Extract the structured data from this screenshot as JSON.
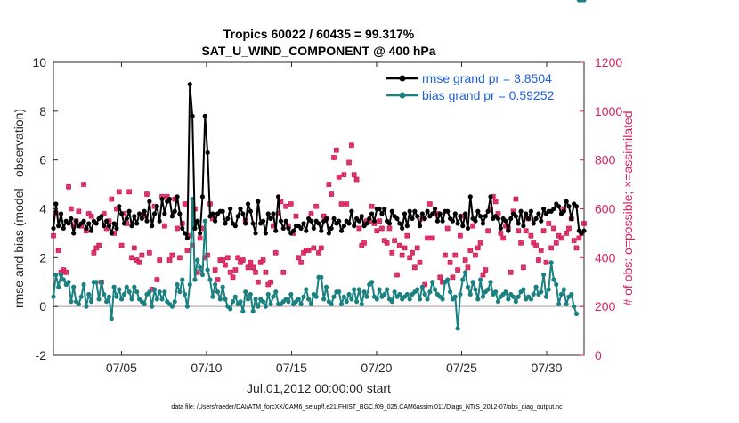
{
  "chart_data": {
    "type": "line",
    "title_line1": "Tropics 60022 / 60435 = 99.317%",
    "title_line2": "SAT_U_WIND_COMPONENT @ 400 hPa",
    "xlabel": "Jul.01,2012 00:00:00 start",
    "ylabel_left": "rmse and bias (model - observation)",
    "ylabel_right": "# of obs: o=possible; ×=assimilated",
    "footer": "data file: /Users/raeder/DAI/ATM_forcXX/CAM6_setup/f.e21.FHIST_BGC.f09_025.CAM6assim.011/Diags_NTrS_2012-07/obs_diag_output.nc",
    "xlim": [
      1,
      32.2
    ],
    "ylim_left": [
      -2,
      10
    ],
    "ylim_right": [
      0,
      1200
    ],
    "x_ticks": [
      5,
      10,
      15,
      20,
      25,
      30
    ],
    "x_tick_labels": [
      "07/05",
      "07/10",
      "07/15",
      "07/20",
      "07/25",
      "07/30"
    ],
    "y_left_ticks": [
      "-2",
      "0",
      "2",
      "4",
      "6",
      "8",
      "10"
    ],
    "y_right_ticks": [
      "0",
      "200",
      "400",
      "600",
      "800",
      "1000",
      "1200"
    ],
    "legend": [
      {
        "label": "rmse grand pr = 3.8504",
        "color": "#000000"
      },
      {
        "label": "bias grand pr = 0.59252",
        "color": "#1a8080"
      }
    ],
    "colors": {
      "rmse": "#000000",
      "bias": "#1a8080",
      "obs": "#d6235c",
      "zero_line": "#c9b8be",
      "legend_text": "#1f5fd6"
    },
    "series": [
      {
        "name": "rmse",
        "axis": "left",
        "values": [
          3.2,
          4.2,
          3.3,
          3.8,
          3.2,
          3.5,
          3.4,
          3.6,
          3.0,
          3.5,
          3.3,
          3.4,
          3.5,
          3.2,
          3.4,
          3.1,
          3.5,
          3.4,
          3.6,
          3.7,
          3.3,
          3.5,
          3.3,
          3.0,
          3.4,
          3.2,
          4.1,
          3.8,
          3.4,
          3.6,
          3.9,
          3.3,
          3.7,
          3.4,
          3.8,
          3.6,
          3.9,
          3.5,
          4.3,
          3.3,
          3.8,
          4.1,
          3.5,
          4.4,
          3.8,
          4.3,
          4.4,
          3.7,
          3.9,
          4.5,
          3.8,
          3.2,
          3.0,
          2.8,
          9.1,
          7.8,
          3.2,
          3.5,
          3.0,
          4.5,
          7.8,
          6.3,
          3.7,
          3.8,
          3.5,
          3.8,
          3.9,
          3.9,
          3.4,
          3.6,
          4.0,
          3.4,
          3.3,
          3.7,
          4.0,
          3.8,
          3.4,
          4.2,
          3.9,
          3.4,
          3.0,
          4.3,
          3.4,
          3.5,
          3.0,
          3.8,
          3.6,
          3.8,
          3.1,
          4.5,
          3.5,
          3.2,
          3.5,
          3.2,
          3.0,
          3.1,
          3.3,
          3.3,
          3.2,
          3.4,
          3.1,
          3.6,
          3.5,
          3.2,
          3.5,
          3.4,
          3.1,
          3.5,
          3.6,
          3.0,
          3.2,
          3.6,
          3.4,
          3.5,
          3.1,
          3.3,
          3.5,
          3.4,
          3.9,
          3.3,
          3.6,
          3.5,
          3.7,
          3.3,
          3.4,
          3.6,
          3.8,
          3.5,
          4.0,
          4.0,
          3.8,
          4.0,
          3.5,
          3.4,
          3.9,
          3.7,
          3.6,
          3.4,
          3.2,
          3.8,
          3.3,
          3.9,
          3.6,
          3.9,
          3.7,
          3.3,
          3.8,
          3.6,
          3.9,
          3.7,
          3.8,
          4.0,
          3.5,
          3.8,
          3.5,
          3.9,
          3.9,
          3.6,
          3.5,
          3.8,
          3.4,
          3.7,
          3.3,
          3.8,
          3.2,
          4.5,
          3.6,
          3.5,
          3.9,
          3.7,
          3.4,
          3.7,
          3.9,
          4.5,
          3.6,
          3.7,
          3.6,
          3.2,
          3.6,
          3.5,
          3.1,
          3.6,
          3.8,
          3.7,
          3.4,
          3.9,
          3.3,
          3.8,
          3.6,
          3.9,
          3.4,
          3.6,
          3.8,
          3.5,
          4.0,
          3.8,
          3.9,
          3.9,
          4.0,
          4.2,
          4.1,
          3.8,
          3.9,
          4.3,
          4.1,
          3.6,
          4.2,
          4.1,
          3.1,
          3.0,
          3.1
        ]
      },
      {
        "name": "bias",
        "axis": "left",
        "values": [
          0.4,
          1.3,
          0.8,
          1.3,
          1.1,
          0.9,
          1.0,
          0.2,
          0.8,
          0.2,
          0.1,
          0.4,
          0.9,
          0.0,
          0.5,
          0.2,
          1.0,
          1.0,
          0.3,
          1.0,
          0.5,
          0.2,
          0.4,
          -0.5,
          0.8,
          0.4,
          0.7,
          0.3,
          0.5,
          0.8,
          0.6,
          0.3,
          0.8,
          0.6,
          0.3,
          0.2,
          0.1,
          0.5,
          0.6,
          0.0,
          0.7,
          0.3,
          0.6,
          0.3,
          0.6,
          0.2,
          0.1,
          0.0,
          0.2,
          0.9,
          0.6,
          1.1,
          0.5,
          0.0,
          0.9,
          4.4,
          1.1,
          1.9,
          1.6,
          1.3,
          3.5,
          1.5,
          1.1,
          0.4,
          0.9,
          0.6,
          0.3,
          0.8,
          0.3,
          0.0,
          -0.1,
          0.2,
          0.4,
          0.1,
          0.2,
          -0.2,
          0.6,
          0.3,
          0.5,
          -0.2,
          0.3,
          0.0,
          0.3,
          0.2,
          0.0,
          0.5,
          0.1,
          0.4,
          0.6,
          0.1,
          0.1,
          0.2,
          0.3,
          0.2,
          0.5,
          0.1,
          0.2,
          0.3,
          0.1,
          0.4,
          0.7,
          0.3,
          0.1,
          0.5,
          0.4,
          1.2,
          1.2,
          0.3,
          0.8,
          0.2,
          0.1,
          0.4,
          0.6,
          0.6,
          0.1,
          0.4,
          0.2,
          0.5,
          0.3,
          0.7,
          0.2,
          0.7,
          0.1,
          0.6,
          0.4,
          0.9,
          1.0,
          0.4,
          0.3,
          0.7,
          0.4,
          0.5,
          0.7,
          0.3,
          0.2,
          0.6,
          0.4,
          0.5,
          0.3,
          0.4,
          0.5,
          0.3,
          0.5,
          0.6,
          0.7,
          0.3,
          0.8,
          0.5,
          0.3,
          0.6,
          1.0,
          0.7,
          0.5,
          0.4,
          0.3,
          1.0,
          1.1,
          0.6,
          0.3,
          0.4,
          -0.9,
          0.5,
          1.1,
          1.4,
          0.8,
          0.5,
          1.0,
          0.7,
          0.3,
          1.1,
          0.4,
          0.6,
          0.7,
          1.0,
          0.5,
          0.6,
          0.2,
          0.4,
          0.5,
          0.6,
          0.3,
          0.5,
          0.4,
          0.2,
          0.4,
          0.6,
          0.7,
          0.3,
          0.4,
          0.3,
          0.5,
          0.8,
          0.5,
          0.6,
          1.3,
          0.4,
          0.7,
          1.8,
          1.1,
          0.9,
          0.1,
          0.5,
          0.7,
          0.1,
          0.4,
          0.5,
          0.0,
          -0.3
        ]
      },
      {
        "name": "obs_possible",
        "axis": "right",
        "values": [
          490,
          580,
          430,
          340,
          350,
          340,
          690,
          600,
          530,
          550,
          590,
          530,
          700,
          510,
          580,
          570,
          420,
          440,
          450,
          300,
          580,
          520,
          550,
          640,
          500,
          600,
          670,
          450,
          580,
          540,
          670,
          400,
          440,
          390,
          380,
          410,
          570,
          660,
          420,
          270,
          610,
          310,
          390,
          650,
          530,
          650,
          390,
          410,
          640,
          520,
          400,
          540,
          620,
          430,
          490,
          450,
          600,
          340,
          480,
          520,
          400,
          410,
          620,
          560,
          350,
          310,
          390,
          390,
          370,
          400,
          340,
          320,
          350,
          400,
          380,
          390,
          550,
          360,
          380,
          360,
          340,
          300,
          380,
          390,
          340,
          290,
          300,
          530,
          420,
          580,
          630,
          340,
          610,
          530,
          620,
          500,
          570,
          400,
          380,
          420,
          430,
          430,
          580,
          440,
          610,
          420,
          440,
          570,
          560,
          700,
          660,
          810,
          840,
          730,
          620,
          740,
          620,
          790,
          860,
          740,
          720,
          520,
          450,
          460,
          550,
          550,
          610,
          540,
          510,
          550,
          520,
          470,
          460,
          520,
          420,
          470,
          330,
          450,
          410,
          440,
          490,
          400,
          420,
          360,
          440,
          380,
          560,
          290,
          480,
          620,
          480,
          580,
          580,
          320,
          300,
          410,
          520,
          380,
          320,
          410,
          350,
          490,
          570,
          390,
          360,
          430,
          530,
          410,
          440,
          460,
          330,
          350,
          510,
          600,
          650,
          630,
          580,
          500,
          480,
          530,
          520,
          340,
          590,
          640,
          510,
          460,
          360,
          510,
          560,
          490,
          460,
          450,
          390,
          430,
          510,
          380,
          540,
          440,
          520,
          460,
          490,
          480,
          600,
          500,
          520,
          560,
          470,
          440,
          480,
          500,
          540,
          620,
          530,
          640,
          0,
          640,
          650
        ]
      },
      {
        "name": "obs_assimilated",
        "axis": "right",
        "values": [
          490,
          580,
          430,
          340,
          350,
          340,
          690,
          600,
          530,
          550,
          590,
          530,
          700,
          510,
          580,
          570,
          420,
          440,
          450,
          300,
          580,
          520,
          550,
          640,
          500,
          600,
          670,
          450,
          580,
          540,
          670,
          400,
          440,
          390,
          380,
          410,
          570,
          660,
          420,
          270,
          610,
          310,
          390,
          650,
          530,
          650,
          390,
          410,
          640,
          520,
          400,
          540,
          620,
          430,
          490,
          450,
          600,
          340,
          480,
          520,
          400,
          410,
          620,
          560,
          350,
          310,
          390,
          390,
          370,
          400,
          340,
          320,
          350,
          400,
          380,
          390,
          550,
          360,
          380,
          360,
          340,
          300,
          380,
          390,
          340,
          290,
          300,
          530,
          420,
          580,
          630,
          340,
          610,
          530,
          620,
          500,
          570,
          400,
          380,
          420,
          430,
          430,
          580,
          440,
          610,
          420,
          440,
          570,
          560,
          700,
          660,
          810,
          840,
          730,
          620,
          740,
          620,
          790,
          860,
          740,
          720,
          520,
          450,
          460,
          550,
          550,
          610,
          540,
          510,
          550,
          520,
          470,
          460,
          520,
          420,
          470,
          330,
          450,
          410,
          440,
          490,
          400,
          420,
          360,
          440,
          380,
          560,
          290,
          480,
          620,
          480,
          580,
          580,
          320,
          300,
          410,
          520,
          380,
          320,
          410,
          350,
          490,
          570,
          390,
          360,
          430,
          530,
          410,
          440,
          460,
          330,
          350,
          510,
          600,
          650,
          630,
          580,
          500,
          480,
          530,
          520,
          340,
          590,
          640,
          510,
          460,
          360,
          510,
          560,
          490,
          460,
          450,
          390,
          430,
          510,
          380,
          540,
          440,
          520,
          460,
          490,
          480,
          600,
          500,
          520,
          560,
          470,
          440,
          480,
          500,
          540,
          620,
          530,
          640,
          0,
          640,
          650
        ]
      }
    ]
  }
}
